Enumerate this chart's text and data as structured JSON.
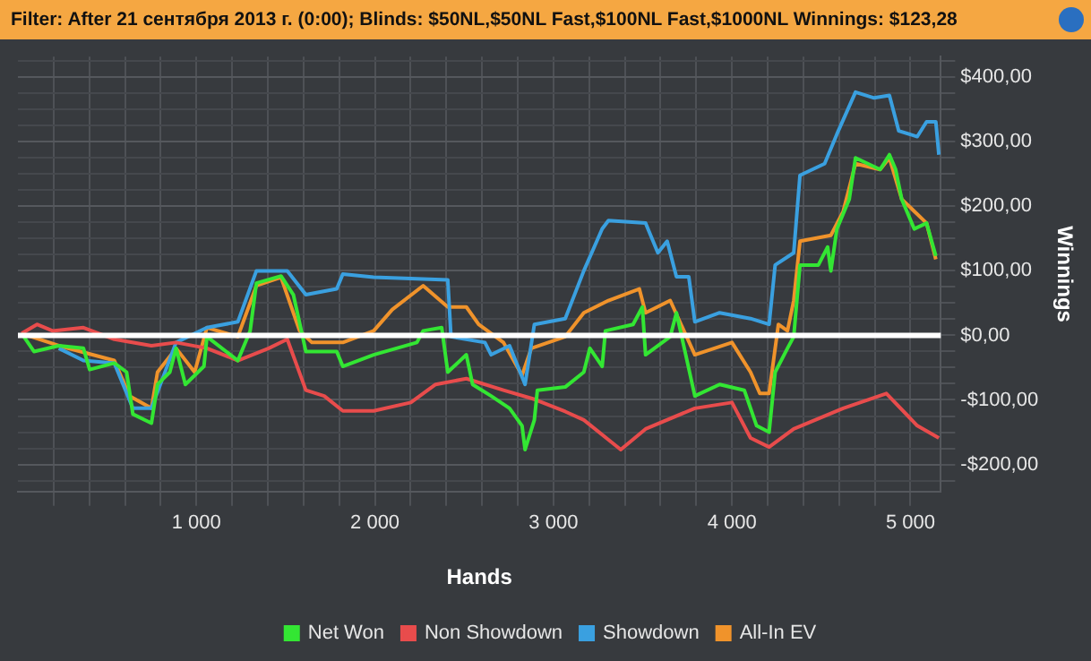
{
  "chart_data": {
    "type": "line",
    "title": "Filter: After 21 сентября 2013 г. (0:00); Blinds: $50NL,$50NL Fast,$100NL Fast,$1000NL Winnings: $123,28",
    "xlabel": "Hands",
    "ylabel": "Winnings",
    "xlim": [
      0,
      5170
    ],
    "ylim": [
      -242,
      432
    ],
    "xticks": [
      {
        "value": 200,
        "label": null
      },
      {
        "value": 400,
        "label": null
      },
      {
        "value": 600,
        "label": null
      },
      {
        "value": 800,
        "label": null
      },
      {
        "value": 1000,
        "label": "1 000"
      },
      {
        "value": 1200,
        "label": null
      },
      {
        "value": 1400,
        "label": null
      },
      {
        "value": 1600,
        "label": null
      },
      {
        "value": 1800,
        "label": null
      },
      {
        "value": 2000,
        "label": "2 000"
      },
      {
        "value": 2200,
        "label": null
      },
      {
        "value": 2400,
        "label": null
      },
      {
        "value": 2600,
        "label": null
      },
      {
        "value": 2800,
        "label": null
      },
      {
        "value": 3000,
        "label": "3 000"
      },
      {
        "value": 3200,
        "label": null
      },
      {
        "value": 3400,
        "label": null
      },
      {
        "value": 3600,
        "label": null
      },
      {
        "value": 3800,
        "label": null
      },
      {
        "value": 4000,
        "label": "4 000"
      },
      {
        "value": 4200,
        "label": null
      },
      {
        "value": 4400,
        "label": null
      },
      {
        "value": 4600,
        "label": null
      },
      {
        "value": 4800,
        "label": null
      },
      {
        "value": 5000,
        "label": "5 000"
      }
    ],
    "yticks": [
      {
        "value": -225,
        "label": null
      },
      {
        "value": -200,
        "label": "-$200,00"
      },
      {
        "value": -175,
        "label": null
      },
      {
        "value": -150,
        "label": null
      },
      {
        "value": -125,
        "label": null
      },
      {
        "value": -100,
        "label": "-$100,00"
      },
      {
        "value": -75,
        "label": null
      },
      {
        "value": -50,
        "label": null
      },
      {
        "value": -25,
        "label": null
      },
      {
        "value": 0,
        "label": "$0,00"
      },
      {
        "value": 25,
        "label": null
      },
      {
        "value": 50,
        "label": null
      },
      {
        "value": 75,
        "label": null
      },
      {
        "value": 100,
        "label": "$100,00"
      },
      {
        "value": 125,
        "label": null
      },
      {
        "value": 150,
        "label": null
      },
      {
        "value": 175,
        "label": null
      },
      {
        "value": 200,
        "label": "$200,00"
      },
      {
        "value": 225,
        "label": null
      },
      {
        "value": 250,
        "label": null
      },
      {
        "value": 275,
        "label": null
      },
      {
        "value": 300,
        "label": "$300,00"
      },
      {
        "value": 325,
        "label": null
      },
      {
        "value": 350,
        "label": null
      },
      {
        "value": 375,
        "label": null
      },
      {
        "value": 400,
        "label": "$400,00"
      },
      {
        "value": 425,
        "label": null
      }
    ],
    "grid": true,
    "legend": "bottom",
    "marker": "none",
    "line_style": "solid",
    "ref_lines": [
      {
        "axis": "y",
        "value": 0,
        "label": null,
        "color": "#ffffff"
      }
    ],
    "series": [
      {
        "name": "Net Won",
        "color": "#33e633",
        "x": [
          21,
          90,
          229,
          367,
          402,
          540,
          609,
          644,
          748,
          782,
          851,
          886,
          938,
          1042,
          1059,
          1232,
          1301,
          1336,
          1474,
          1543,
          1595,
          1613,
          1786,
          1820,
          1993,
          2235,
          2270,
          2374,
          2408,
          2512,
          2547,
          2651,
          2754,
          2824,
          2841,
          2893,
          2910,
          3066,
          3170,
          3204,
          3273,
          3291,
          3446,
          3498,
          3516,
          3654,
          3689,
          3792,
          3931,
          4069,
          4138,
          4208,
          4242,
          4311,
          4346,
          4381,
          4484,
          4536,
          4554,
          4588,
          4657,
          4692,
          4761,
          4830,
          4882,
          4917,
          4951,
          5021,
          5090,
          5142
        ],
        "values": [
          3,
          -25,
          -16,
          -20,
          -53,
          -43,
          -57,
          -122,
          -136,
          -76,
          -57,
          -20,
          -76,
          -48,
          -2,
          -39,
          7,
          81,
          92,
          63,
          -2,
          -25,
          -25,
          -48,
          -30,
          -11,
          7,
          12,
          -57,
          -30,
          -76,
          -94,
          -113,
          -140,
          -177,
          -131,
          -85,
          -80,
          -57,
          -20,
          -48,
          7,
          17,
          44,
          -30,
          -2,
          35,
          -94,
          -76,
          -85,
          -140,
          -150,
          -57,
          -20,
          -2,
          109,
          109,
          137,
          100,
          165,
          211,
          275,
          266,
          257,
          280,
          257,
          211,
          165,
          174,
          123
        ]
      },
      {
        "name": "Non Showdown",
        "color": "#e84c4c",
        "x": [
          21,
          107,
          194,
          367,
          540,
          748,
          886,
          1059,
          1232,
          1405,
          1509,
          1613,
          1716,
          1820,
          1993,
          2201,
          2340,
          2512,
          2720,
          2893,
          3066,
          3170,
          3377,
          3516,
          3792,
          4000,
          4104,
          4208,
          4346,
          4623,
          4865,
          5038,
          5159
        ],
        "values": [
          3,
          17,
          7,
          12,
          -6,
          -16,
          -11,
          -20,
          -39,
          -20,
          -6,
          -85,
          -94,
          -117,
          -117,
          -104,
          -76,
          -67,
          -85,
          -99,
          -118,
          -131,
          -177,
          -145,
          -113,
          -104,
          -159,
          -173,
          -145,
          -113,
          -90,
          -140,
          -159
        ]
      },
      {
        "name": "Showdown",
        "color": "#3aa0e0",
        "x": [
          229,
          367,
          540,
          644,
          748,
          886,
          1059,
          1232,
          1336,
          1509,
          1613,
          1786,
          1820,
          1993,
          2408,
          2426,
          2616,
          2651,
          2754,
          2841,
          2893,
          3066,
          3170,
          3273,
          3308,
          3516,
          3585,
          3637,
          3689,
          3758,
          3792,
          3931,
          4104,
          4208,
          4242,
          4346,
          4381,
          4519,
          4588,
          4692,
          4796,
          4882,
          4934,
          5038,
          5090,
          5142,
          5159
        ],
        "values": [
          -20,
          -39,
          -43,
          -113,
          -113,
          -11,
          12,
          21,
          100,
          100,
          63,
          72,
          95,
          90,
          86,
          -2,
          -11,
          -30,
          -16,
          -76,
          17,
          26,
          100,
          165,
          178,
          174,
          128,
          146,
          91,
          91,
          21,
          35,
          26,
          17,
          109,
          128,
          248,
          266,
          312,
          377,
          368,
          372,
          317,
          308,
          331,
          331,
          280
        ]
      },
      {
        "name": "All-In EV",
        "color": "#f0932b",
        "x": [
          21,
          229,
          540,
          626,
          748,
          782,
          886,
          990,
          1059,
          1232,
          1336,
          1474,
          1578,
          1647,
          1820,
          1993,
          2097,
          2270,
          2408,
          2512,
          2581,
          2720,
          2824,
          2876,
          3066,
          3170,
          3308,
          3481,
          3516,
          3654,
          3792,
          4000,
          4104,
          4156,
          4208,
          4260,
          4311,
          4346,
          4381,
          4554,
          4623,
          4692,
          4830,
          4882,
          4951,
          5090,
          5142
        ],
        "values": [
          3,
          -16,
          -39,
          -94,
          -113,
          -57,
          -20,
          -57,
          12,
          -2,
          77,
          90,
          7,
          -11,
          -11,
          7,
          40,
          77,
          44,
          44,
          17,
          -11,
          -62,
          -20,
          -2,
          35,
          54,
          72,
          35,
          54,
          -30,
          -11,
          -57,
          -90,
          -90,
          17,
          7,
          54,
          146,
          155,
          192,
          266,
          257,
          275,
          211,
          174,
          118
        ]
      }
    ]
  }
}
